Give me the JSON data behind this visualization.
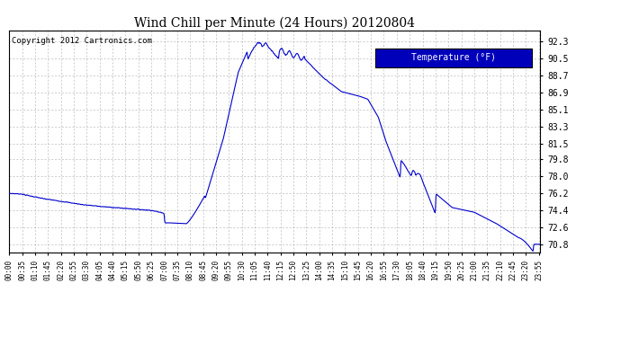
{
  "title": "Wind Chill per Minute (24 Hours) 20120804",
  "copyright": "Copyright 2012 Cartronics.com",
  "legend_label": "Temperature (°F)",
  "line_color": "#0000CC",
  "background_color": "#ffffff",
  "grid_color": "#aaaaaa",
  "yticks": [
    70.8,
    72.6,
    74.4,
    76.2,
    78.0,
    79.8,
    81.5,
    83.3,
    85.1,
    86.9,
    88.7,
    90.5,
    92.3
  ],
  "ylim": [
    69.9,
    93.5
  ],
  "x_tick_labels": [
    "00:00",
    "00:35",
    "01:10",
    "01:45",
    "02:20",
    "02:55",
    "03:30",
    "04:05",
    "04:40",
    "05:15",
    "05:50",
    "06:25",
    "07:00",
    "07:35",
    "08:10",
    "08:45",
    "09:20",
    "09:55",
    "10:30",
    "11:05",
    "11:40",
    "12:15",
    "12:50",
    "13:25",
    "14:00",
    "14:35",
    "15:10",
    "15:45",
    "16:20",
    "16:55",
    "17:30",
    "18:05",
    "18:40",
    "19:15",
    "19:50",
    "20:25",
    "21:00",
    "21:35",
    "22:10",
    "22:45",
    "23:20",
    "23:55"
  ],
  "x_tick_positions": [
    0,
    35,
    70,
    105,
    140,
    175,
    210,
    245,
    280,
    315,
    350,
    385,
    420,
    455,
    490,
    525,
    560,
    595,
    630,
    665,
    700,
    735,
    770,
    805,
    840,
    875,
    910,
    945,
    980,
    1015,
    1050,
    1085,
    1120,
    1155,
    1190,
    1225,
    1260,
    1295,
    1330,
    1365,
    1400,
    1435
  ]
}
